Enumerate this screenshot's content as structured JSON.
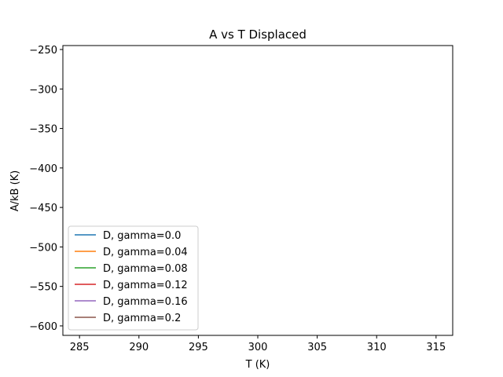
{
  "chart_data": {
    "type": "line",
    "title": "A vs T Displaced",
    "xlabel": "T (K)",
    "ylabel": "A/kB (K)",
    "xlim": [
      283.6,
      316.4
    ],
    "ylim": [
      -612,
      -245
    ],
    "xticks": [
      285,
      290,
      295,
      300,
      305,
      310,
      315
    ],
    "xtick_labels": [
      "285",
      "290",
      "295",
      "300",
      "305",
      "310",
      "315"
    ],
    "yticks": [
      -600,
      -550,
      -500,
      -450,
      -400,
      -350,
      -300,
      -250
    ],
    "ytick_labels": [
      "−600",
      "−550",
      "−500",
      "−450",
      "−400",
      "−350",
      "−300",
      "−250"
    ],
    "grid": false,
    "legend_position": "lower left",
    "series": [
      {
        "name": "D, gamma=0.0",
        "color": "#1f77b4",
        "x": [],
        "y": []
      },
      {
        "name": "D, gamma=0.04",
        "color": "#ff7f0e",
        "x": [],
        "y": []
      },
      {
        "name": "D, gamma=0.08",
        "color": "#2ca02c",
        "x": [],
        "y": []
      },
      {
        "name": "D, gamma=0.12",
        "color": "#d62728",
        "x": [],
        "y": []
      },
      {
        "name": "D, gamma=0.16",
        "color": "#9467bd",
        "x": [],
        "y": []
      },
      {
        "name": "D, gamma=0.2",
        "color": "#8c564b",
        "x": [],
        "y": []
      }
    ]
  }
}
